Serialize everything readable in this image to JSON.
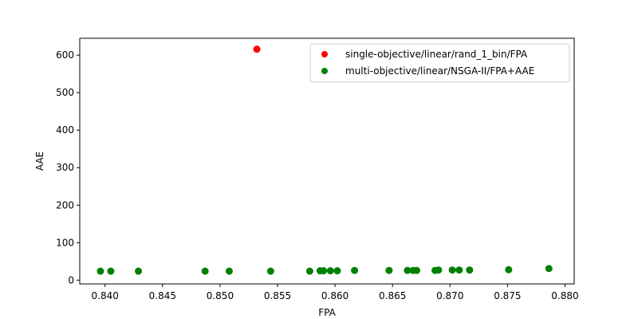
{
  "chart_data": {
    "type": "scatter",
    "xlabel": "FPA",
    "ylabel": "AAE",
    "xlim": [
      0.8378,
      0.8808
    ],
    "ylim": [
      -10,
      645
    ],
    "xticks": [
      "0.840",
      "0.845",
      "0.850",
      "0.855",
      "0.860",
      "0.865",
      "0.870",
      "0.875",
      "0.880"
    ],
    "yticks": [
      "0",
      "100",
      "200",
      "300",
      "400",
      "500",
      "600"
    ],
    "grid": false,
    "legend_position": "top-right",
    "series": [
      {
        "name": "single-objective/linear/rand_1_bin/FPA",
        "color": "#ff0000",
        "points": [
          {
            "x": 0.8532,
            "y": 616
          }
        ]
      },
      {
        "name": "multi-objective/linear/NSGA-II/FPA+AAE",
        "color": "#008000",
        "points": [
          {
            "x": 0.8396,
            "y": 24
          },
          {
            "x": 0.8405,
            "y": 24
          },
          {
            "x": 0.8429,
            "y": 24
          },
          {
            "x": 0.8487,
            "y": 24
          },
          {
            "x": 0.8508,
            "y": 24
          },
          {
            "x": 0.8544,
            "y": 24
          },
          {
            "x": 0.8578,
            "y": 24
          },
          {
            "x": 0.8587,
            "y": 25
          },
          {
            "x": 0.859,
            "y": 25
          },
          {
            "x": 0.8596,
            "y": 25
          },
          {
            "x": 0.8602,
            "y": 25
          },
          {
            "x": 0.8617,
            "y": 26
          },
          {
            "x": 0.8647,
            "y": 26
          },
          {
            "x": 0.8663,
            "y": 26
          },
          {
            "x": 0.8668,
            "y": 26
          },
          {
            "x": 0.8671,
            "y": 26
          },
          {
            "x": 0.8687,
            "y": 26
          },
          {
            "x": 0.869,
            "y": 27
          },
          {
            "x": 0.8702,
            "y": 27
          },
          {
            "x": 0.8708,
            "y": 27
          },
          {
            "x": 0.8717,
            "y": 27
          },
          {
            "x": 0.8751,
            "y": 28
          },
          {
            "x": 0.8786,
            "y": 31
          }
        ]
      }
    ]
  }
}
